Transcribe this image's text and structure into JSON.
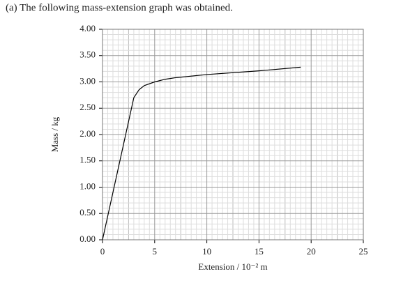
{
  "chart_data": {
    "type": "line",
    "title": "(a) The following mass-extension graph was obtained.",
    "x_label": "Extension / 10⁻² m",
    "y_label": "Mass / kg",
    "x": [
      0,
      3,
      3.5,
      4,
      5,
      6,
      7,
      10,
      15,
      19
    ],
    "values": [
      0,
      2.7,
      2.85,
      2.93,
      3.0,
      3.05,
      3.08,
      3.14,
      3.21,
      3.28
    ],
    "color": "#000000",
    "xlim": [
      0,
      25
    ],
    "ylim": [
      0,
      4
    ],
    "xticks": [
      0,
      5,
      10,
      15,
      20,
      25
    ],
    "yticks": [
      {
        "value": 0,
        "label": "0.00"
      },
      {
        "value": 0.5,
        "label": "0.50"
      },
      {
        "value": 1,
        "label": "1.00"
      },
      {
        "value": 1.5,
        "label": "1.50"
      },
      {
        "value": 2,
        "label": "2.00"
      },
      {
        "value": 2.5,
        "label": "2.50"
      },
      {
        "value": 3,
        "label": "3.00"
      },
      {
        "value": 3.5,
        "label": "3.50"
      },
      {
        "value": 4,
        "label": "4.00"
      }
    ],
    "grid": true
  }
}
